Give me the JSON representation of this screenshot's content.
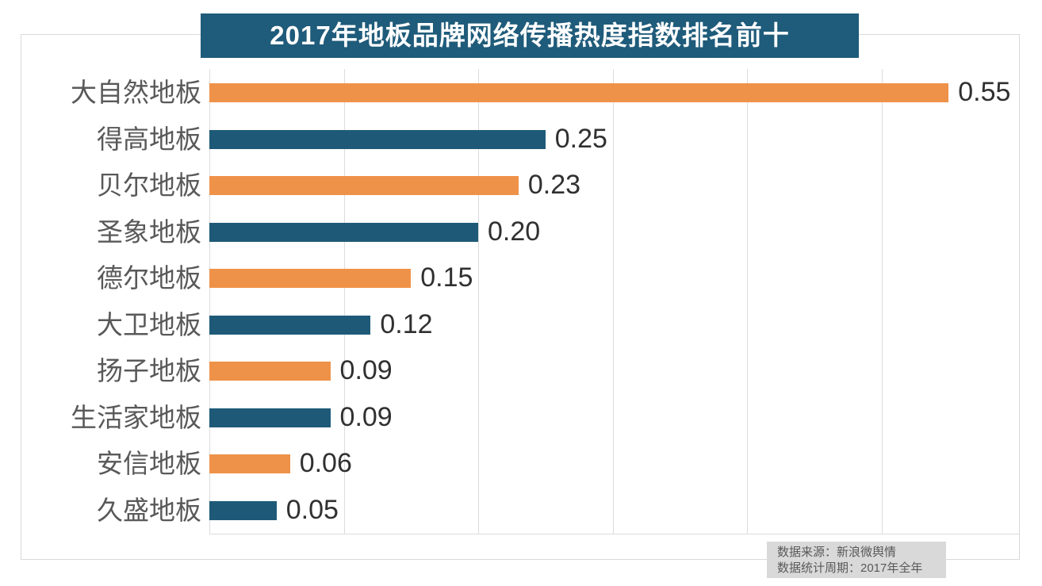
{
  "title": "2017年地板品牌网络传播热度指数排名前十",
  "source_note": {
    "line1": "数据来源：新浪微舆情",
    "line2": "数据统计周期：2017年全年"
  },
  "colors": {
    "title_bg": "#1f5b7a",
    "title_text": "#ffffff",
    "bar_orange": "#ef9249",
    "bar_blue": "#1e5a78",
    "grid": "#dcdcdc",
    "frame": "#d9d9d9",
    "category_text": "#595959",
    "value_text": "#303030",
    "source_bg": "#d9d9d9",
    "source_text": "#595959"
  },
  "chart_data": {
    "type": "bar",
    "orientation": "horizontal",
    "title": "2017年地板品牌网络传播热度指数排名前十",
    "categories": [
      "大自然地板",
      "得高地板",
      "贝尔地板",
      "圣象地板",
      "德尔地板",
      "大卫地板",
      "扬子地板",
      "生活家地板",
      "安信地板",
      "久盛地板"
    ],
    "values": [
      0.55,
      0.25,
      0.23,
      0.2,
      0.15,
      0.12,
      0.09,
      0.09,
      0.06,
      0.05
    ],
    "value_labels": [
      "0.55",
      "0.25",
      "0.23",
      "0.20",
      "0.15",
      "0.12",
      "0.09",
      "0.09",
      "0.06",
      "0.05"
    ],
    "bar_colors": [
      "orange",
      "blue",
      "orange",
      "blue",
      "orange",
      "blue",
      "orange",
      "blue",
      "orange",
      "blue"
    ],
    "xlabel": "",
    "ylabel": "",
    "xlim": [
      0,
      0.6
    ],
    "grid_step": 0.1,
    "gridlines_at": [
      0,
      0.1,
      0.2,
      0.3,
      0.4,
      0.5
    ],
    "grid": "vertical-on",
    "legend": "none",
    "data_labels": "outside-end"
  }
}
